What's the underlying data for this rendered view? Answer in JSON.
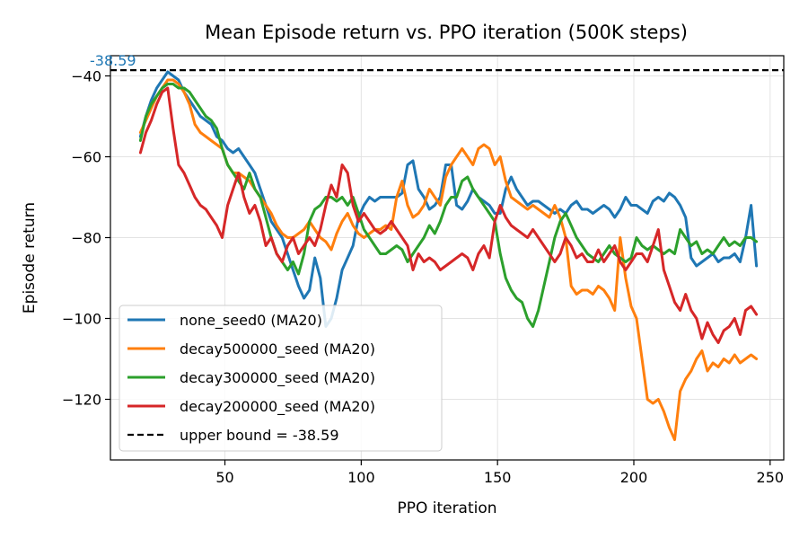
{
  "chart_data": {
    "type": "line",
    "title": "Mean Episode return vs. PPO iteration (500K steps)",
    "xlabel": "PPO iteration",
    "ylabel": "Episode return",
    "xlim": [
      8,
      255
    ],
    "ylim": [
      -135,
      -35
    ],
    "xticks": [
      50,
      100,
      150,
      200,
      250
    ],
    "yticks": [
      -40,
      -60,
      -80,
      -100,
      -120
    ],
    "xtick_labels": [
      "50",
      "100",
      "150",
      "200",
      "250"
    ],
    "ytick_labels": [
      "−40",
      "−60",
      "−80",
      "−100",
      "−120"
    ],
    "grid": true,
    "legend_position": "lower-left",
    "annotation": {
      "text": "-38.59",
      "color": "#1f77b4",
      "x": 8,
      "y": -38.59
    },
    "hline": {
      "y": -38.59,
      "label": "upper bound = -38.59",
      "color": "#000000",
      "style": "dashed"
    },
    "series": [
      {
        "name": "none_seed0 (MA20)",
        "color": "#1f77b4",
        "x": [
          19,
          21,
          23,
          25,
          27,
          29,
          31,
          33,
          35,
          37,
          39,
          41,
          43,
          45,
          47,
          49,
          51,
          53,
          55,
          57,
          59,
          61,
          63,
          65,
          67,
          69,
          71,
          73,
          75,
          77,
          79,
          81,
          83,
          85,
          87,
          89,
          91,
          93,
          95,
          97,
          99,
          101,
          103,
          105,
          107,
          109,
          111,
          113,
          115,
          117,
          119,
          121,
          123,
          125,
          127,
          129,
          131,
          133,
          135,
          137,
          139,
          141,
          143,
          145,
          147,
          149,
          151,
          153,
          155,
          157,
          159,
          161,
          163,
          165,
          167,
          169,
          171,
          173,
          175,
          177,
          179,
          181,
          183,
          185,
          187,
          189,
          191,
          193,
          195,
          197,
          199,
          201,
          203,
          205,
          207,
          209,
          211,
          213,
          215,
          217,
          219,
          221,
          223,
          225,
          227,
          229,
          231,
          233,
          235,
          237,
          239,
          241,
          243,
          245
        ],
        "values": [
          -55,
          -50,
          -46,
          -43,
          -41,
          -39,
          -40,
          -41,
          -44,
          -46,
          -48,
          -50,
          -51,
          -52,
          -55,
          -56,
          -58,
          -59,
          -58,
          -60,
          -62,
          -64,
          -68,
          -72,
          -76,
          -78,
          -80,
          -84,
          -88,
          -92,
          -95,
          -93,
          -85,
          -90,
          -102,
          -100,
          -95,
          -88,
          -85,
          -82,
          -75,
          -72,
          -70,
          -71,
          -70,
          -70,
          -70,
          -70,
          -69,
          -62,
          -61,
          -68,
          -70,
          -73,
          -72,
          -70,
          -62,
          -62,
          -72,
          -73,
          -71,
          -68,
          -70,
          -71,
          -72,
          -74,
          -74,
          -68,
          -65,
          -68,
          -70,
          -72,
          -71,
          -71,
          -72,
          -73,
          -74,
          -73,
          -74,
          -72,
          -71,
          -73,
          -73,
          -74,
          -73,
          -72,
          -73,
          -75,
          -73,
          -70,
          -72,
          -72,
          -73,
          -74,
          -71,
          -70,
          -71,
          -69,
          -70,
          -72,
          -75,
          -85,
          -87,
          -86,
          -85,
          -84,
          -86,
          -85,
          -85,
          -84,
          -86,
          -80,
          -72,
          -87
        ]
      },
      {
        "name": "decay500000_seed (MA20)",
        "color": "#ff7f0e",
        "x": [
          19,
          21,
          23,
          25,
          27,
          29,
          31,
          33,
          35,
          37,
          39,
          41,
          43,
          45,
          47,
          49,
          51,
          53,
          55,
          57,
          59,
          61,
          63,
          65,
          67,
          69,
          71,
          73,
          75,
          77,
          79,
          81,
          83,
          85,
          87,
          89,
          91,
          93,
          95,
          97,
          99,
          101,
          103,
          105,
          107,
          109,
          111,
          113,
          115,
          117,
          119,
          121,
          123,
          125,
          127,
          129,
          131,
          133,
          135,
          137,
          139,
          141,
          143,
          145,
          147,
          149,
          151,
          153,
          155,
          157,
          159,
          161,
          163,
          165,
          167,
          169,
          171,
          173,
          175,
          177,
          179,
          181,
          183,
          185,
          187,
          189,
          191,
          193,
          195,
          197,
          199,
          201,
          203,
          205,
          207,
          209,
          211,
          213,
          215,
          217,
          219,
          221,
          223,
          225,
          227,
          229,
          231,
          233,
          235,
          237,
          239,
          241,
          243,
          245
        ],
        "values": [
          -54,
          -51,
          -48,
          -45,
          -43,
          -41,
          -41,
          -42,
          -44,
          -47,
          -52,
          -54,
          -55,
          -56,
          -57,
          -58,
          -62,
          -64,
          -64,
          -65,
          -66,
          -68,
          -70,
          -72,
          -74,
          -77,
          -79,
          -80,
          -80,
          -79,
          -78,
          -76,
          -78,
          -80,
          -81,
          -83,
          -79,
          -76,
          -74,
          -77,
          -79,
          -80,
          -79,
          -78,
          -78,
          -77,
          -78,
          -70,
          -66,
          -72,
          -75,
          -74,
          -72,
          -68,
          -70,
          -72,
          -65,
          -62,
          -60,
          -58,
          -60,
          -62,
          -58,
          -57,
          -58,
          -62,
          -60,
          -66,
          -70,
          -71,
          -72,
          -73,
          -72,
          -73,
          -74,
          -75,
          -72,
          -75,
          -80,
          -92,
          -94,
          -93,
          -93,
          -94,
          -92,
          -93,
          -95,
          -98,
          -80,
          -90,
          -97,
          -100,
          -110,
          -120,
          -121,
          -120,
          -123,
          -127,
          -130,
          -118,
          -115,
          -113,
          -110,
          -108,
          -113,
          -111,
          -112,
          -110,
          -111,
          -109,
          -111,
          -110,
          -109,
          -110
        ]
      },
      {
        "name": "decay300000_seed (MA20)",
        "color": "#2ca02c",
        "x": [
          19,
          21,
          23,
          25,
          27,
          29,
          31,
          33,
          35,
          37,
          39,
          41,
          43,
          45,
          47,
          49,
          51,
          53,
          55,
          57,
          59,
          61,
          63,
          65,
          67,
          69,
          71,
          73,
          75,
          77,
          79,
          81,
          83,
          85,
          87,
          89,
          91,
          93,
          95,
          97,
          99,
          101,
          103,
          105,
          107,
          109,
          111,
          113,
          115,
          117,
          119,
          121,
          123,
          125,
          127,
          129,
          131,
          133,
          135,
          137,
          139,
          141,
          143,
          145,
          147,
          149,
          151,
          153,
          155,
          157,
          159,
          161,
          163,
          165,
          167,
          169,
          171,
          173,
          175,
          177,
          179,
          181,
          183,
          185,
          187,
          189,
          191,
          193,
          195,
          197,
          199,
          201,
          203,
          205,
          207,
          209,
          211,
          213,
          215,
          217,
          219,
          221,
          223,
          225,
          227,
          229,
          231,
          233,
          235,
          237,
          239,
          241,
          243,
          245
        ],
        "values": [
          -56,
          -50,
          -47,
          -45,
          -43,
          -42,
          -42,
          -43,
          -43,
          -44,
          -46,
          -48,
          -50,
          -51,
          -53,
          -58,
          -62,
          -64,
          -66,
          -68,
          -64,
          -68,
          -70,
          -75,
          -80,
          -84,
          -86,
          -88,
          -86,
          -89,
          -84,
          -76,
          -73,
          -72,
          -70,
          -70,
          -71,
          -70,
          -72,
          -70,
          -74,
          -78,
          -80,
          -82,
          -84,
          -84,
          -83,
          -82,
          -83,
          -86,
          -84,
          -82,
          -80,
          -77,
          -79,
          -76,
          -72,
          -70,
          -70,
          -66,
          -65,
          -68,
          -70,
          -72,
          -74,
          -76,
          -84,
          -90,
          -93,
          -95,
          -96,
          -100,
          -102,
          -98,
          -92,
          -86,
          -80,
          -76,
          -74,
          -77,
          -80,
          -82,
          -84,
          -85,
          -86,
          -84,
          -82,
          -84,
          -85,
          -86,
          -85,
          -80,
          -82,
          -83,
          -82,
          -83,
          -84,
          -83,
          -84,
          -78,
          -80,
          -82,
          -81,
          -84,
          -83,
          -84,
          -82,
          -80,
          -82,
          -81,
          -82,
          -80,
          -80,
          -81
        ]
      },
      {
        "name": "decay200000_seed (MA20)",
        "color": "#d62728",
        "x": [
          19,
          21,
          23,
          25,
          27,
          29,
          31,
          33,
          35,
          37,
          39,
          41,
          43,
          45,
          47,
          49,
          51,
          53,
          55,
          57,
          59,
          61,
          63,
          65,
          67,
          69,
          71,
          73,
          75,
          77,
          79,
          81,
          83,
          85,
          87,
          89,
          91,
          93,
          95,
          97,
          99,
          101,
          103,
          105,
          107,
          109,
          111,
          113,
          115,
          117,
          119,
          121,
          123,
          125,
          127,
          129,
          131,
          133,
          135,
          137,
          139,
          141,
          143,
          145,
          147,
          149,
          151,
          153,
          155,
          157,
          159,
          161,
          163,
          165,
          167,
          169,
          171,
          173,
          175,
          177,
          179,
          181,
          183,
          185,
          187,
          189,
          191,
          193,
          195,
          197,
          199,
          201,
          203,
          205,
          207,
          209,
          211,
          213,
          215,
          217,
          219,
          221,
          223,
          225,
          227,
          229,
          231,
          233,
          235,
          237,
          239,
          241,
          243,
          245
        ],
        "values": [
          -59,
          -54,
          -51,
          -47,
          -44,
          -43,
          -53,
          -62,
          -64,
          -67,
          -70,
          -72,
          -73,
          -75,
          -77,
          -80,
          -72,
          -68,
          -64,
          -70,
          -74,
          -72,
          -76,
          -82,
          -80,
          -84,
          -86,
          -82,
          -80,
          -84,
          -82,
          -80,
          -82,
          -78,
          -72,
          -67,
          -70,
          -62,
          -64,
          -72,
          -76,
          -74,
          -76,
          -78,
          -79,
          -78,
          -76,
          -78,
          -80,
          -82,
          -88,
          -84,
          -86,
          -85,
          -86,
          -88,
          -87,
          -86,
          -85,
          -84,
          -85,
          -88,
          -84,
          -82,
          -85,
          -76,
          -72,
          -75,
          -77,
          -78,
          -79,
          -80,
          -78,
          -80,
          -82,
          -84,
          -86,
          -84,
          -80,
          -82,
          -85,
          -84,
          -86,
          -86,
          -83,
          -86,
          -84,
          -82,
          -86,
          -88,
          -86,
          -84,
          -84,
          -86,
          -82,
          -78,
          -88,
          -92,
          -96,
          -98,
          -94,
          -98,
          -100,
          -105,
          -101,
          -104,
          -106,
          -103,
          -102,
          -100,
          -104,
          -98,
          -97,
          -99
        ]
      }
    ]
  }
}
